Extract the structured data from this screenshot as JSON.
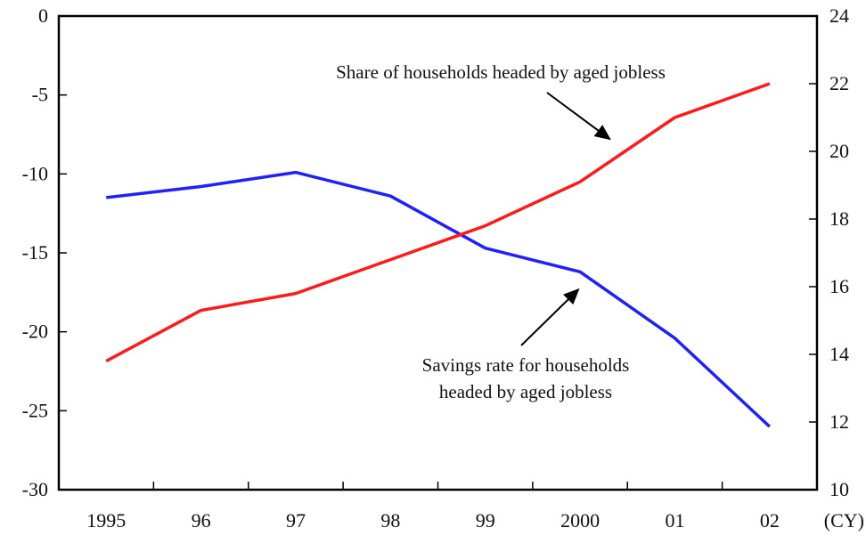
{
  "chart_data": {
    "type": "line",
    "title": "",
    "xlabel": "",
    "x_unit_label": "(CY)",
    "categories": [
      "1995",
      "96",
      "97",
      "98",
      "99",
      "2000",
      "01",
      "02"
    ],
    "left_axis": {
      "range": [
        -30,
        0
      ],
      "ticks": [
        "0",
        "-5",
        "-10",
        "-15",
        "-20",
        "-25",
        "-30"
      ]
    },
    "right_axis": {
      "range": [
        10,
        24
      ],
      "ticks": [
        "24",
        "22",
        "20",
        "18",
        "16",
        "14",
        "12",
        "10"
      ]
    },
    "series": [
      {
        "name": "Savings rate for households headed by aged jobless",
        "axis": "left",
        "color": "#1f1fff",
        "values": [
          -11.5,
          -10.8,
          -9.9,
          -11.4,
          -14.7,
          -16.2,
          -20.4,
          -26.0
        ]
      },
      {
        "name": "Share of households headed by aged jobless",
        "axis": "right",
        "color": "#ff1a1a",
        "values": [
          13.8,
          15.3,
          15.8,
          16.8,
          17.8,
          19.1,
          21.0,
          22.0
        ]
      }
    ],
    "annotations": [
      {
        "lines": [
          "Share of households headed by aged jobless"
        ],
        "points_to": "Share of households headed by aged jobless"
      },
      {
        "lines": [
          "Savings rate for households",
          "headed by aged jobless"
        ],
        "points_to": "Savings rate for households headed by aged jobless"
      }
    ],
    "grid": false,
    "legend": "none"
  }
}
